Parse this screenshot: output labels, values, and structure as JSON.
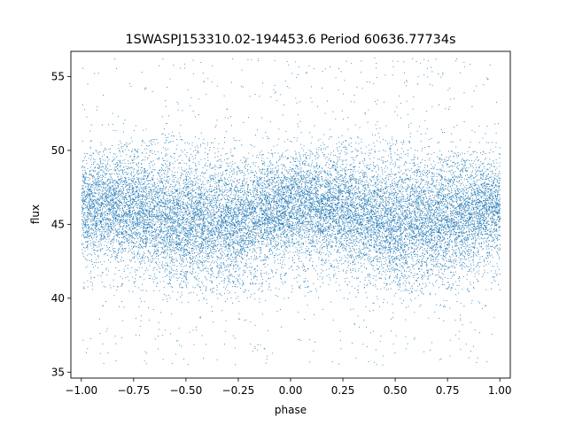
{
  "chart_data": {
    "type": "scatter",
    "title": "1SWASPJ153310.02-194453.6 Period 60636.77734s",
    "xlabel": "phase",
    "ylabel": "flux",
    "xlim": [
      -1.05,
      1.05
    ],
    "ylim": [
      34.6,
      56.7
    ],
    "x_ticks": [
      -1.0,
      -0.75,
      -0.5,
      -0.25,
      0.0,
      0.25,
      0.5,
      0.75,
      1.0
    ],
    "x_tick_labels": [
      "−1.00",
      "−0.75",
      "−0.50",
      "−0.25",
      "0.00",
      "0.25",
      "0.50",
      "0.75",
      "1.00"
    ],
    "y_ticks": [
      35,
      40,
      45,
      50,
      55
    ],
    "y_tick_labels": [
      "35",
      "40",
      "45",
      "50",
      "55"
    ],
    "grid": false,
    "legend": "none",
    "marker_color": "#1f77b4",
    "series": [
      {
        "phase_range": [
          -1.0,
          1.0
        ],
        "flux_range": [
          35.5,
          56.3
        ],
        "core_band": {
          "phase": [
            -1.0,
            -0.75,
            -0.5,
            -0.25,
            0.0,
            0.25,
            0.5,
            0.75,
            1.0
          ],
          "center": [
            46.2,
            46.0,
            45.0,
            45.2,
            46.3,
            46.0,
            45.0,
            45.3,
            46.2
          ],
          "halfwidth": [
            2.2,
            2.4,
            2.8,
            2.6,
            2.2,
            2.4,
            2.8,
            2.6,
            2.2
          ]
        },
        "upper_cloud": {
          "phase": [
            -1.0,
            -0.8,
            -0.6,
            -0.4,
            -0.2,
            0.0,
            0.2,
            0.4,
            0.6,
            0.8,
            1.0
          ],
          "top": [
            49.8,
            50.5,
            51.3,
            50.6,
            50.0,
            49.8,
            50.5,
            51.3,
            50.6,
            50.0,
            49.8
          ]
        },
        "lower_cloud_bottom": 40.5
      }
    ]
  }
}
